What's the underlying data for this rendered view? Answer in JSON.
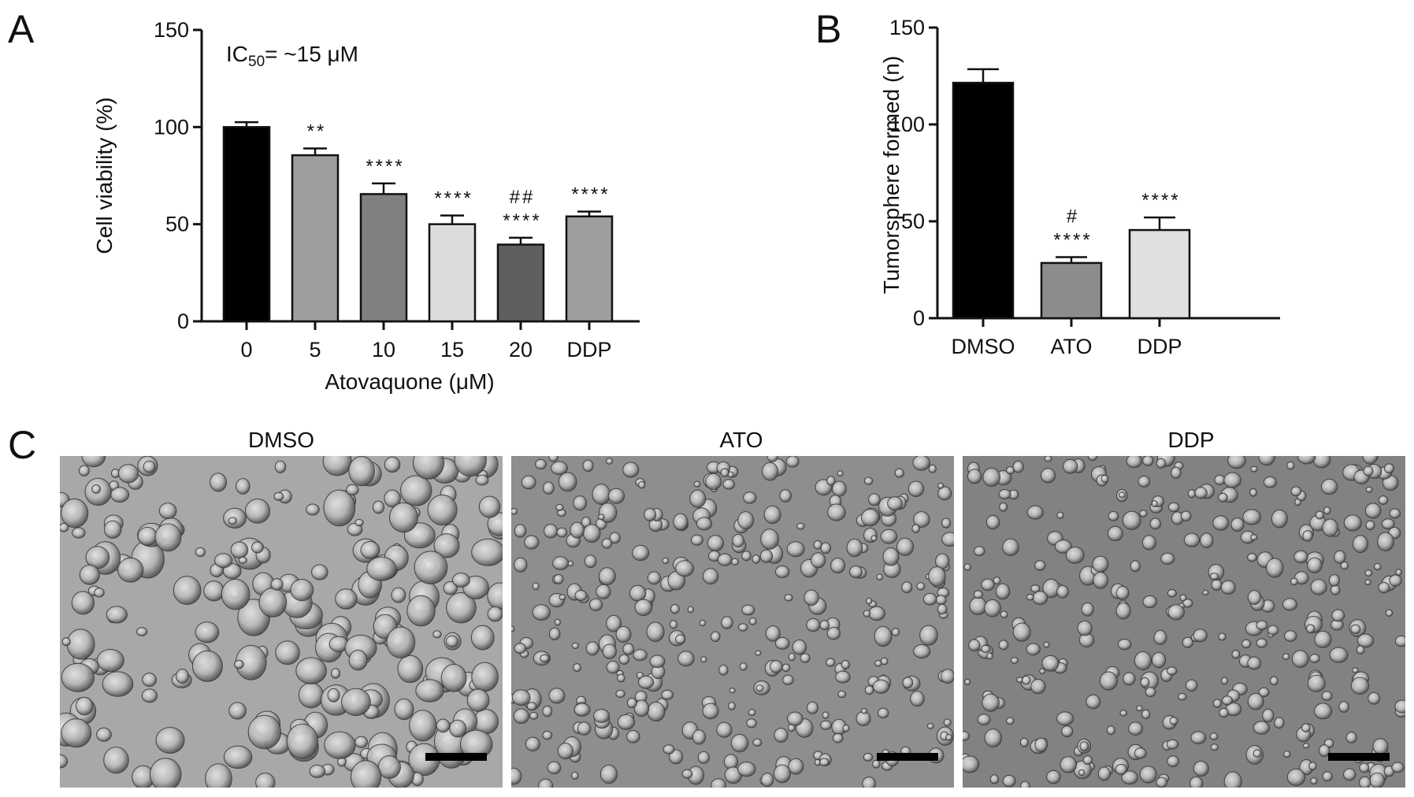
{
  "panels": {
    "A": "A",
    "B": "B",
    "C": "C"
  },
  "chart_data": [
    {
      "id": "A",
      "type": "bar",
      "title": "",
      "annotation": {
        "prefix": "IC",
        "sub": "50",
        "suffix": "= ~15 μM"
      },
      "xlabel": "Atovaquone (μM)",
      "ylabel": "Cell viability (%)",
      "ylim": [
        0,
        150
      ],
      "yticks": [
        0,
        50,
        100,
        150
      ],
      "categories": [
        "0",
        "5",
        "10",
        "15",
        "20",
        "DDP"
      ],
      "values": [
        100,
        85.5,
        65.5,
        50,
        39.5,
        54
      ],
      "errors": [
        2.5,
        3.5,
        5.5,
        4.5,
        3.5,
        2.5
      ],
      "colors": [
        "#000000",
        "#9e9e9e",
        "#808080",
        "#dcdcdc",
        "#5f5f5f",
        "#9e9e9e"
      ],
      "significance": [
        {
          "index": 1,
          "lines": [
            "**"
          ]
        },
        {
          "index": 2,
          "lines": [
            "****"
          ]
        },
        {
          "index": 3,
          "lines": [
            "****"
          ]
        },
        {
          "index": 4,
          "lines": [
            "##",
            "****"
          ]
        },
        {
          "index": 5,
          "lines": [
            "****"
          ]
        }
      ],
      "grid": false
    },
    {
      "id": "B",
      "type": "bar",
      "title": "",
      "xlabel": "",
      "ylabel": "Tumorsphere formed (n)",
      "ylim": [
        0,
        150
      ],
      "yticks": [
        0,
        50,
        100,
        150
      ],
      "categories": [
        "DMSO",
        "ATO",
        "DDP"
      ],
      "values": [
        121.5,
        28.5,
        45.5
      ],
      "errors": [
        7,
        3,
        6.5
      ],
      "colors": [
        "#000000",
        "#8c8c8c",
        "#e0e0e0"
      ],
      "significance": [
        {
          "index": 1,
          "lines": [
            "#",
            "****"
          ]
        },
        {
          "index": 2,
          "lines": [
            "****"
          ]
        }
      ],
      "grid": false
    }
  ],
  "micrographs": [
    {
      "label": "DMSO",
      "background": "#a8a8a8"
    },
    {
      "label": "ATO",
      "background": "#8e8e8e"
    },
    {
      "label": "DDP",
      "background": "#828282"
    }
  ]
}
